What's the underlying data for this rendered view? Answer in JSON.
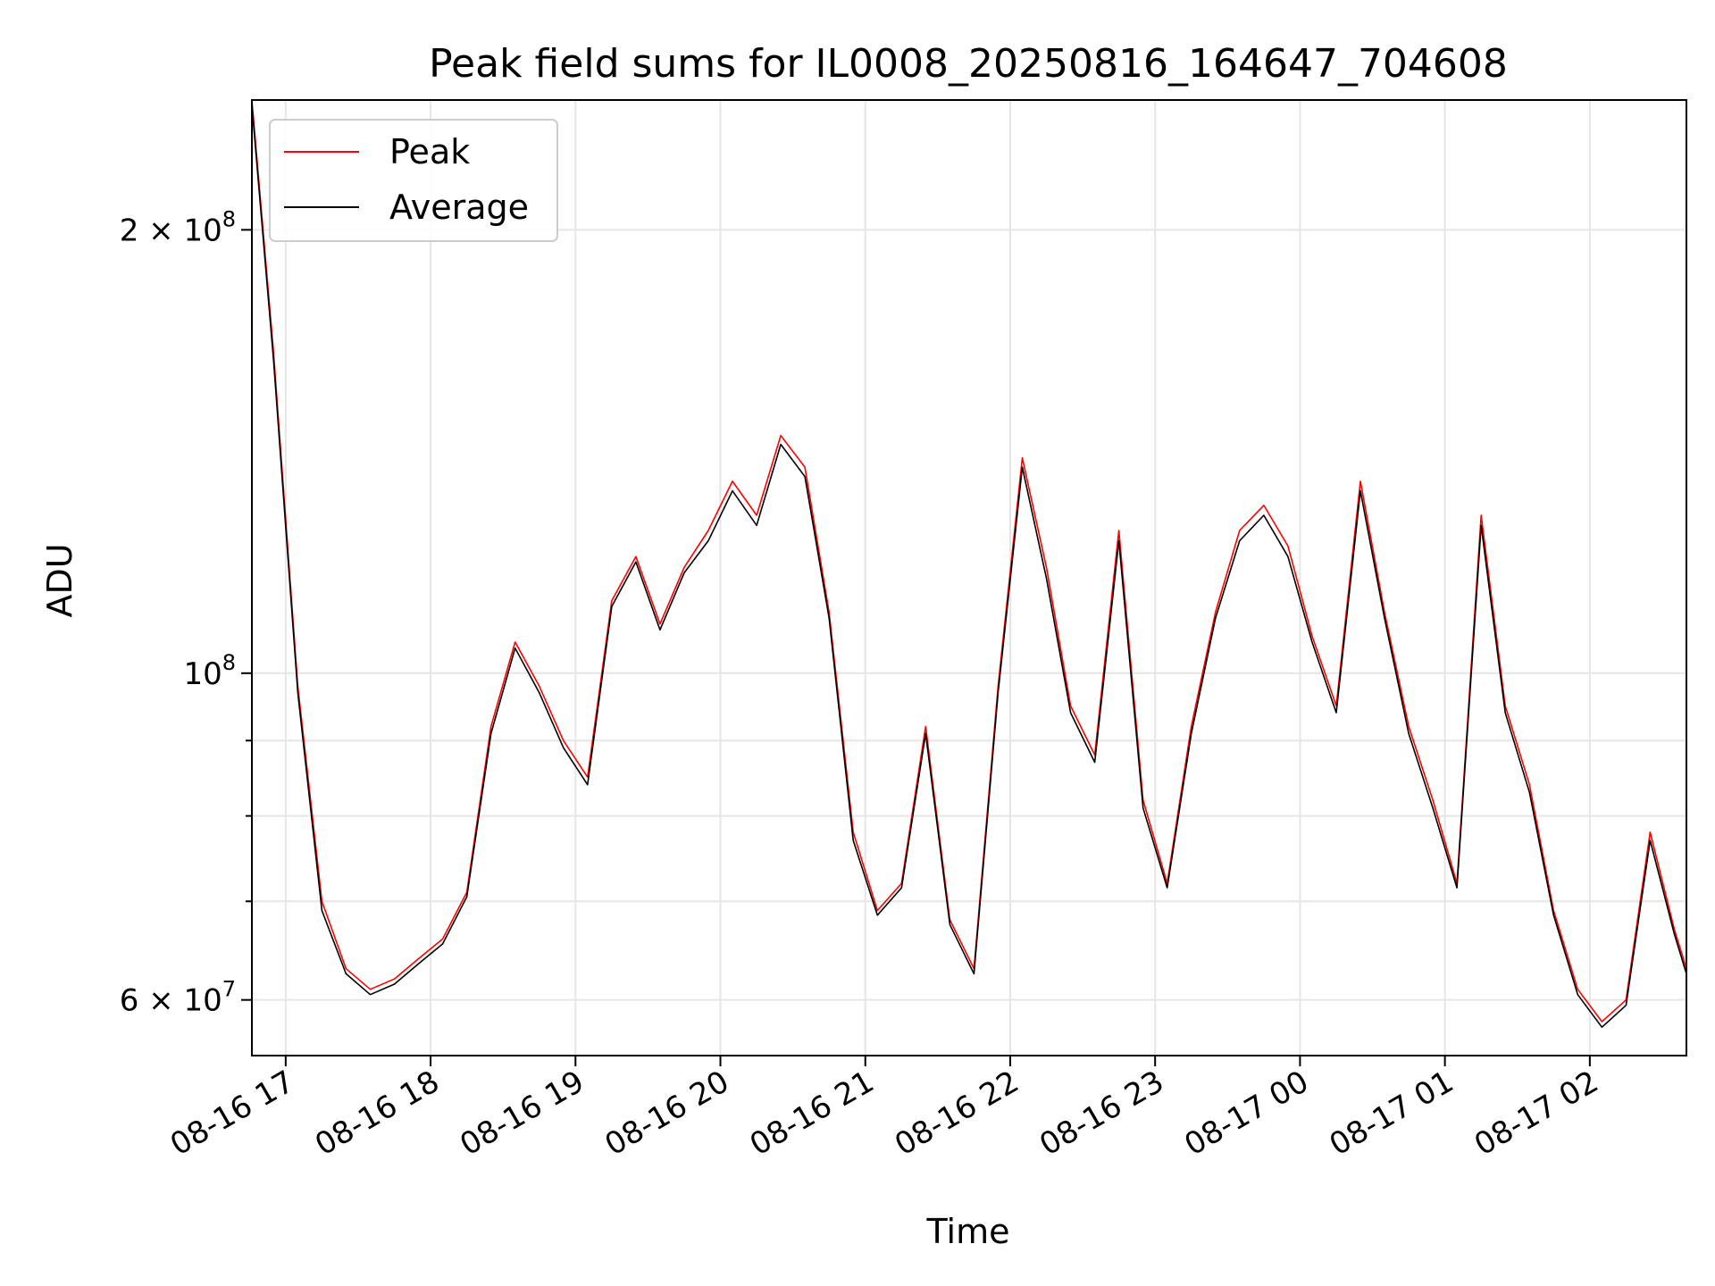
{
  "chart_data": {
    "type": "line",
    "title": "Peak field sums for IL0008_20250816_164647_704608",
    "xlabel": "Time",
    "ylabel": "ADU",
    "yscale": "log",
    "xlim": [
      "2025-08-16 16:46",
      "2025-08-17 02:40"
    ],
    "ylim": [
      55000000,
      245000000
    ],
    "grid": true,
    "legend_position": "upper-left",
    "x_ticks": [
      "08-16 17",
      "08-16 18",
      "08-16 19",
      "08-16 20",
      "08-16 21",
      "08-16 22",
      "08-16 23",
      "08-17 00",
      "08-17 01",
      "08-17 02"
    ],
    "y_tick_labels": [
      {
        "value": 200000000,
        "mantissa": "2",
        "exponent": "8"
      },
      {
        "value": 100000000,
        "mantissa": "",
        "exponent": "8"
      },
      {
        "value": 60000000,
        "mantissa": "6",
        "exponent": "7"
      }
    ],
    "y_minor_grid": [
      70000000,
      80000000,
      90000000
    ],
    "series": [
      {
        "name": "Peak",
        "color": "#ff0000",
        "x": [
          "2025-08-16 16:46",
          "2025-08-16 16:55",
          "2025-08-16 17:05",
          "2025-08-16 17:15",
          "2025-08-16 17:25",
          "2025-08-16 17:35",
          "2025-08-16 17:45",
          "2025-08-16 17:55",
          "2025-08-16 18:05",
          "2025-08-16 18:15",
          "2025-08-16 18:25",
          "2025-08-16 18:35",
          "2025-08-16 18:45",
          "2025-08-16 18:55",
          "2025-08-16 19:05",
          "2025-08-16 19:15",
          "2025-08-16 19:25",
          "2025-08-16 19:35",
          "2025-08-16 19:45",
          "2025-08-16 19:55",
          "2025-08-16 20:05",
          "2025-08-16 20:15",
          "2025-08-16 20:25",
          "2025-08-16 20:35",
          "2025-08-16 20:45",
          "2025-08-16 20:55",
          "2025-08-16 21:05",
          "2025-08-16 21:15",
          "2025-08-16 21:25",
          "2025-08-16 21:35",
          "2025-08-16 21:45",
          "2025-08-16 21:55",
          "2025-08-16 22:05",
          "2025-08-16 22:15",
          "2025-08-16 22:25",
          "2025-08-16 22:35",
          "2025-08-16 22:45",
          "2025-08-16 22:55",
          "2025-08-16 23:05",
          "2025-08-16 23:15",
          "2025-08-16 23:25",
          "2025-08-16 23:35",
          "2025-08-16 23:45",
          "2025-08-16 23:55",
          "2025-08-17 00:05",
          "2025-08-17 00:15",
          "2025-08-17 00:25",
          "2025-08-17 00:35",
          "2025-08-17 00:45",
          "2025-08-17 00:55",
          "2025-08-17 01:05",
          "2025-08-17 01:15",
          "2025-08-17 01:25",
          "2025-08-17 01:35",
          "2025-08-17 01:45",
          "2025-08-17 01:55",
          "2025-08-17 02:05",
          "2025-08-17 02:15",
          "2025-08-17 02:25",
          "2025-08-17 02:35",
          "2025-08-17 02:40"
        ],
        "y": [
          245000000,
          165000000,
          98000000,
          70000000,
          63000000,
          61000000,
          62000000,
          64000000,
          66000000,
          71000000,
          92000000,
          105000000,
          98000000,
          90000000,
          85000000,
          112000000,
          120000000,
          108000000,
          118000000,
          125000000,
          135000000,
          128000000,
          145000000,
          138000000,
          110000000,
          78000000,
          69000000,
          72000000,
          92000000,
          68000000,
          63000000,
          98000000,
          140000000,
          118000000,
          95000000,
          88000000,
          125000000,
          82000000,
          72000000,
          92000000,
          110000000,
          125000000,
          130000000,
          122000000,
          106000000,
          95000000,
          135000000,
          110000000,
          92000000,
          82000000,
          72000000,
          128000000,
          95000000,
          84000000,
          69000000,
          61000000,
          58000000,
          60000000,
          78000000,
          67000000,
          63000000
        ]
      },
      {
        "name": "Average",
        "color": "#000000",
        "x": [
          "2025-08-16 16:46",
          "2025-08-16 16:55",
          "2025-08-16 17:05",
          "2025-08-16 17:15",
          "2025-08-16 17:25",
          "2025-08-16 17:35",
          "2025-08-16 17:45",
          "2025-08-16 17:55",
          "2025-08-16 18:05",
          "2025-08-16 18:15",
          "2025-08-16 18:25",
          "2025-08-16 18:35",
          "2025-08-16 18:45",
          "2025-08-16 18:55",
          "2025-08-16 19:05",
          "2025-08-16 19:15",
          "2025-08-16 19:25",
          "2025-08-16 19:35",
          "2025-08-16 19:45",
          "2025-08-16 19:55",
          "2025-08-16 20:05",
          "2025-08-16 20:15",
          "2025-08-16 20:25",
          "2025-08-16 20:35",
          "2025-08-16 20:45",
          "2025-08-16 20:55",
          "2025-08-16 21:05",
          "2025-08-16 21:15",
          "2025-08-16 21:25",
          "2025-08-16 21:35",
          "2025-08-16 21:45",
          "2025-08-16 21:55",
          "2025-08-16 22:05",
          "2025-08-16 22:15",
          "2025-08-16 22:25",
          "2025-08-16 22:35",
          "2025-08-16 22:45",
          "2025-08-16 22:55",
          "2025-08-16 23:05",
          "2025-08-16 23:15",
          "2025-08-16 23:25",
          "2025-08-16 23:35",
          "2025-08-16 23:45",
          "2025-08-16 23:55",
          "2025-08-17 00:05",
          "2025-08-17 00:15",
          "2025-08-17 00:25",
          "2025-08-17 00:35",
          "2025-08-17 00:45",
          "2025-08-17 00:55",
          "2025-08-17 01:05",
          "2025-08-17 01:15",
          "2025-08-17 01:25",
          "2025-08-17 01:35",
          "2025-08-17 01:45",
          "2025-08-17 01:55",
          "2025-08-17 02:05",
          "2025-08-17 02:15",
          "2025-08-17 02:25",
          "2025-08-17 02:35",
          "2025-08-17 02:40"
        ],
        "y": [
          243000000,
          163000000,
          97000000,
          69000000,
          62500000,
          60500000,
          61500000,
          63500000,
          65500000,
          70500000,
          91000000,
          104000000,
          97000000,
          89000000,
          84000000,
          111000000,
          119000000,
          107000000,
          117000000,
          123000000,
          133000000,
          126000000,
          143000000,
          136000000,
          109000000,
          77000000,
          68500000,
          71500000,
          91000000,
          67500000,
          62500000,
          97000000,
          138000000,
          116000000,
          94000000,
          87000000,
          123000000,
          81000000,
          71500000,
          91000000,
          109000000,
          123000000,
          128000000,
          120000000,
          105000000,
          94000000,
          133000000,
          109000000,
          91000000,
          81000000,
          71500000,
          126000000,
          94000000,
          83000000,
          68500000,
          60500000,
          57500000,
          59500000,
          77000000,
          66500000,
          62500000
        ]
      }
    ]
  }
}
